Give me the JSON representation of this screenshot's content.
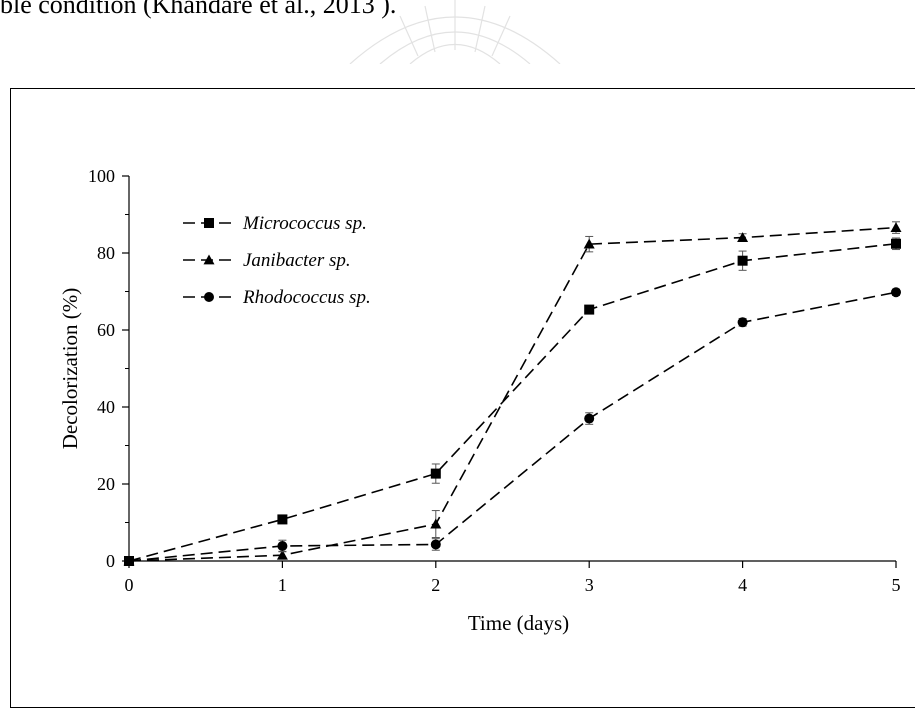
{
  "page": {
    "top_text": "ble condition (Khandare et al., 2013 )."
  },
  "chart_data": {
    "type": "line",
    "title": "",
    "xlabel": "Time (days)",
    "ylabel": "Decolorization (%)",
    "x": [
      0,
      1,
      2,
      3,
      4,
      5
    ],
    "xlim": [
      0,
      5
    ],
    "ylim": [
      0,
      100
    ],
    "yticks": [
      0,
      20,
      40,
      60,
      80,
      100
    ],
    "xticks": [
      0,
      1,
      2,
      3,
      4,
      5
    ],
    "grid": false,
    "legend_position": "top-left",
    "series": [
      {
        "name": "Micrococcus sp.",
        "marker": "square",
        "color": "#000000",
        "values": [
          0,
          10.8,
          22.7,
          65.3,
          78.0,
          82.4
        ],
        "errors": [
          0.5,
          1.0,
          2.5,
          1.0,
          2.5,
          1.5
        ]
      },
      {
        "name": "Janibacter sp.",
        "marker": "triangle",
        "color": "#000000",
        "values": [
          0,
          1.5,
          9.6,
          82.3,
          84.0,
          86.6
        ],
        "errors": [
          0.5,
          1.0,
          3.5,
          2.0,
          1.0,
          1.5
        ]
      },
      {
        "name": "Rhodococcus sp.",
        "marker": "circle",
        "color": "#000000",
        "values": [
          0,
          3.9,
          4.3,
          37.0,
          62.0,
          69.8
        ],
        "errors": [
          0.5,
          1.5,
          1.5,
          1.5,
          1.0,
          0.8
        ]
      }
    ]
  }
}
